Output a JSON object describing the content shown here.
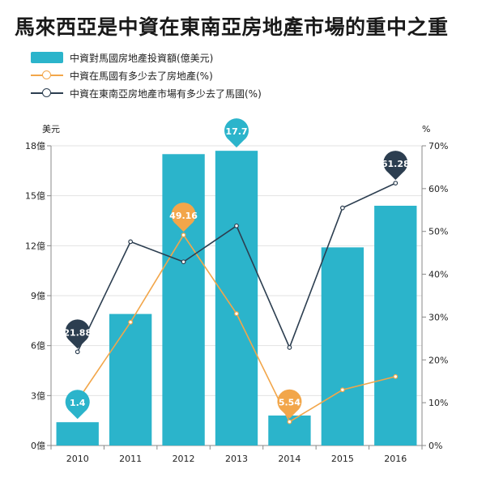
{
  "title": "馬來西亞是中資在東南亞房地產市場的重中之重",
  "legend": [
    {
      "label": "中資對馬國房地產投資額(億美元)",
      "kind": "bar"
    },
    {
      "label": "中資在馬國有多少去了房地產(%)",
      "kind": "line-orange"
    },
    {
      "label": "中資在東南亞房地產市場有多少去了馬國(%)",
      "kind": "line-navy"
    }
  ],
  "chart_data": {
    "type": "bar",
    "categories": [
      "2010",
      "2011",
      "2012",
      "2013",
      "2014",
      "2015",
      "2016"
    ],
    "left_axis": {
      "unit_label": "美元",
      "ylim": [
        0,
        18
      ],
      "ticks": [
        "0億",
        "3億",
        "6億",
        "9億",
        "12億",
        "15億",
        "18億"
      ]
    },
    "right_axis": {
      "unit_label": "%",
      "ylim": [
        0,
        70
      ],
      "ticks": [
        "0%",
        "10%",
        "20%",
        "30%",
        "40%",
        "50%",
        "60%",
        "70%"
      ]
    },
    "series": [
      {
        "name": "中資對馬國房地產投資額(億美元)",
        "type": "bar",
        "axis": "left",
        "color": "#2bb4cb",
        "values": [
          1.4,
          7.9,
          17.5,
          17.7,
          1.8,
          11.9,
          14.4
        ]
      },
      {
        "name": "中資在馬國有多少去了房地產(%)",
        "type": "line",
        "axis": "right",
        "color": "#f2a64a",
        "values": [
          10.5,
          28.8,
          49.16,
          30.8,
          5.54,
          13.0,
          16.1
        ]
      },
      {
        "name": "中資在東南亞房地產市場有多少去了馬國(%)",
        "type": "line",
        "axis": "right",
        "color": "#2c3e50",
        "values": [
          21.88,
          47.6,
          42.9,
          51.3,
          22.9,
          55.5,
          61.28
        ]
      }
    ],
    "callouts": [
      {
        "label": "1.4",
        "series": 0,
        "index": 0,
        "color": "#2bb4cb"
      },
      {
        "label": "17.7",
        "series": 0,
        "index": 3,
        "color": "#2bb4cb"
      },
      {
        "label": "49.16",
        "series": 1,
        "index": 2,
        "color": "#f2a64a"
      },
      {
        "label": "5.54",
        "series": 1,
        "index": 4,
        "color": "#f2a64a"
      },
      {
        "label": "21.88",
        "series": 2,
        "index": 0,
        "color": "#2c3e50"
      },
      {
        "label": "61.28",
        "series": 2,
        "index": 6,
        "color": "#2c3e50"
      }
    ]
  }
}
